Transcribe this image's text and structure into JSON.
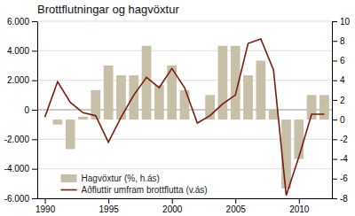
{
  "chart_data": {
    "type": "bar",
    "title": "Brottflutningar og hagvöxtur",
    "x": [
      1990,
      1991,
      1992,
      1993,
      1994,
      1995,
      1996,
      1997,
      1998,
      1999,
      2000,
      2001,
      2002,
      2003,
      2004,
      2005,
      2006,
      2007,
      2008,
      2009,
      2010,
      2011,
      2012
    ],
    "series": [
      {
        "name": "Hagvöxtur (%, h.ás)",
        "type": "bar",
        "axis": "y2",
        "color": "#c8bfa8",
        "values": [
          0.0,
          -0.5,
          -3.0,
          0.3,
          3.0,
          5.5,
          4.5,
          4.5,
          7.5,
          3.5,
          5.5,
          3.0,
          0.0,
          2.5,
          7.5,
          7.5,
          4.5,
          6.0,
          1.0,
          -7.0,
          -4.0,
          2.5,
          2.5
        ]
      },
      {
        "name": "Aðfluttir umfram brottflutta (v.ás)",
        "type": "line",
        "color": "#7b1a0e",
        "values": [
          -500,
          1900,
          500,
          -200,
          -400,
          -2200,
          -500,
          1000,
          2200,
          1500,
          2800,
          1500,
          -900,
          -400,
          400,
          1000,
          4500,
          4800,
          2700,
          -5800,
          -3200,
          -300,
          -300
        ]
      }
    ],
    "xlim": [
      1989.4,
      2012.6
    ],
    "xticks": [
      1990,
      1995,
      2000,
      2005,
      2010
    ],
    "ylim": [
      -6000,
      6000
    ],
    "yticks": [
      {
        "value": -6000,
        "label": "-6.000"
      },
      {
        "value": -4000,
        "label": "-4.000"
      },
      {
        "value": -2000,
        "label": "-2.000"
      },
      0,
      {
        "value": 2000,
        "label": "2.000"
      },
      {
        "value": 4000,
        "label": "4.000"
      },
      {
        "value": 6000,
        "label": "6.000"
      }
    ],
    "y2lim": [
      -8,
      10
    ],
    "y2ticks": [
      -8,
      -6,
      -4,
      -2,
      0,
      2,
      4,
      6,
      8,
      10
    ],
    "grid": true,
    "legend": "lower left"
  }
}
